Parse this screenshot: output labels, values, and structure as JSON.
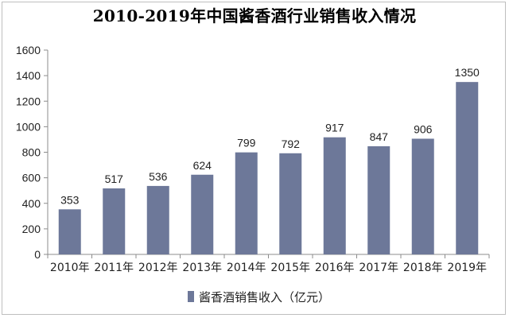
{
  "chart_data": {
    "type": "bar",
    "title": "2010-2019年中国酱香酒行业销售收入情况",
    "categories": [
      "2010年",
      "2011年",
      "2012年",
      "2013年",
      "2014年",
      "2015年",
      "2016年",
      "2017年",
      "2018年",
      "2019年"
    ],
    "series": [
      {
        "name": "酱香酒销售收入（亿元）",
        "values": [
          353,
          517,
          536,
          624,
          799,
          792,
          917,
          847,
          906,
          1350
        ]
      }
    ],
    "ylim": [
      0,
      1600
    ],
    "yticks": [
      0,
      200,
      400,
      600,
      800,
      1000,
      1200,
      1400,
      1600
    ],
    "grid": false,
    "legend_position": "bottom",
    "data_labels": true,
    "bar_color": "#6d7899"
  }
}
